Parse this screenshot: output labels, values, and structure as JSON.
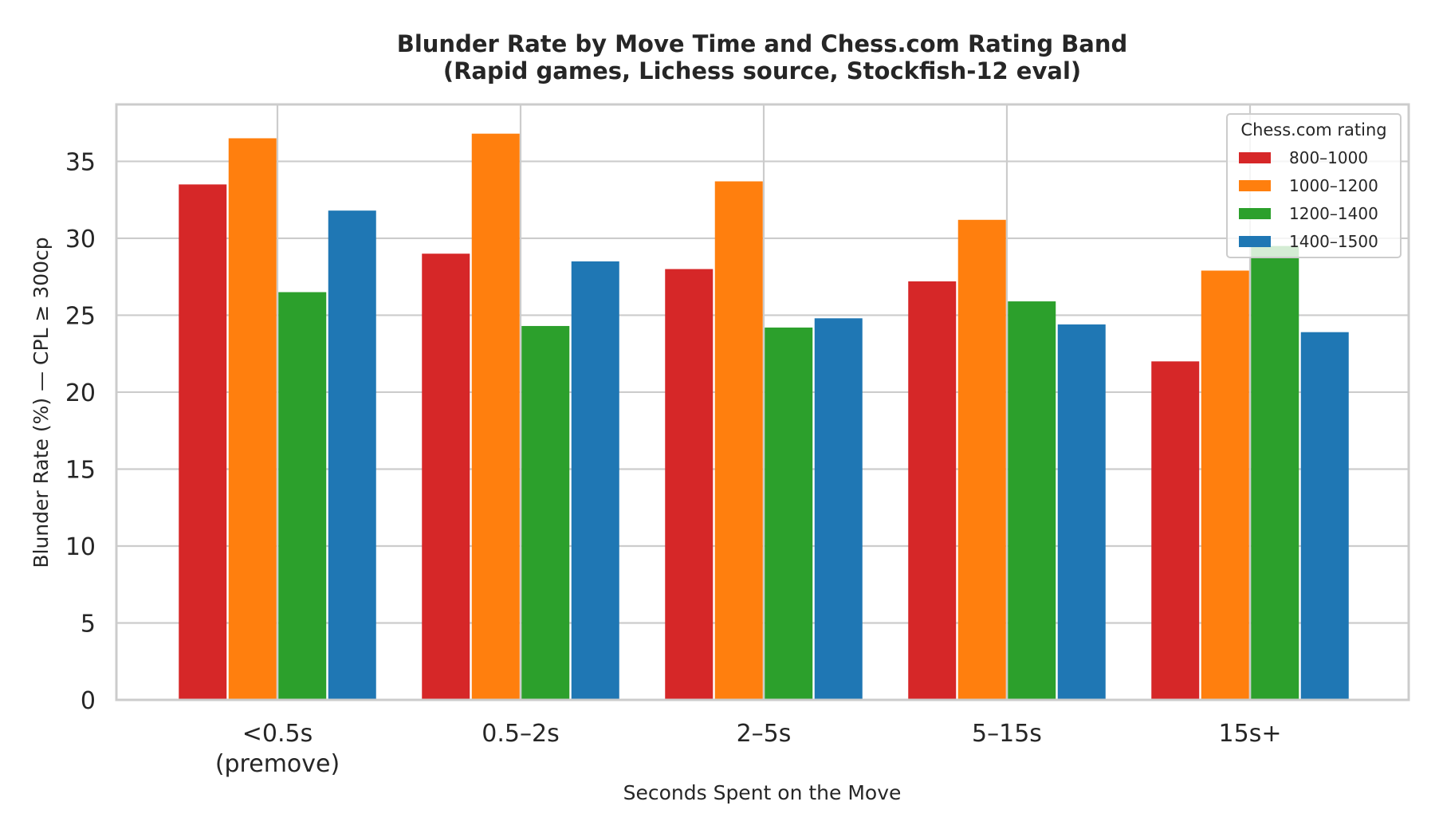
{
  "chart_data": {
    "type": "bar",
    "title": "Blunder Rate by Move Time and Chess.com Rating Band",
    "subtitle": "(Rapid games, Lichess source, Stockfish-12 eval)",
    "xlabel": "Seconds Spent on the Move",
    "ylabel": "Blunder Rate (%)  —  CPL ≥ 300cp",
    "categories": [
      [
        "<0.5s",
        "(premove)"
      ],
      [
        "0.5–2s"
      ],
      [
        "2–5s"
      ],
      [
        "5–15s"
      ],
      [
        "15s+"
      ]
    ],
    "series": [
      {
        "name": "800–1000",
        "color": "#d62728",
        "values": [
          33.5,
          29.0,
          28.0,
          27.2,
          22.0
        ]
      },
      {
        "name": "1000–1200",
        "color": "#ff7f0e",
        "values": [
          36.5,
          36.8,
          33.7,
          31.2,
          27.9
        ]
      },
      {
        "name": "1200–1400",
        "color": "#2ca02c",
        "values": [
          26.5,
          24.3,
          24.2,
          25.9,
          29.5
        ]
      },
      {
        "name": "1400–1500",
        "color": "#1f77b4",
        "values": [
          31.8,
          28.5,
          24.8,
          24.4,
          23.9
        ]
      }
    ],
    "yticks": [
      0,
      5,
      10,
      15,
      20,
      25,
      30,
      35
    ],
    "ylim": [
      0,
      38.7
    ],
    "grid": true,
    "legend": {
      "title": "Chess.com rating",
      "placement": "top-right"
    }
  }
}
